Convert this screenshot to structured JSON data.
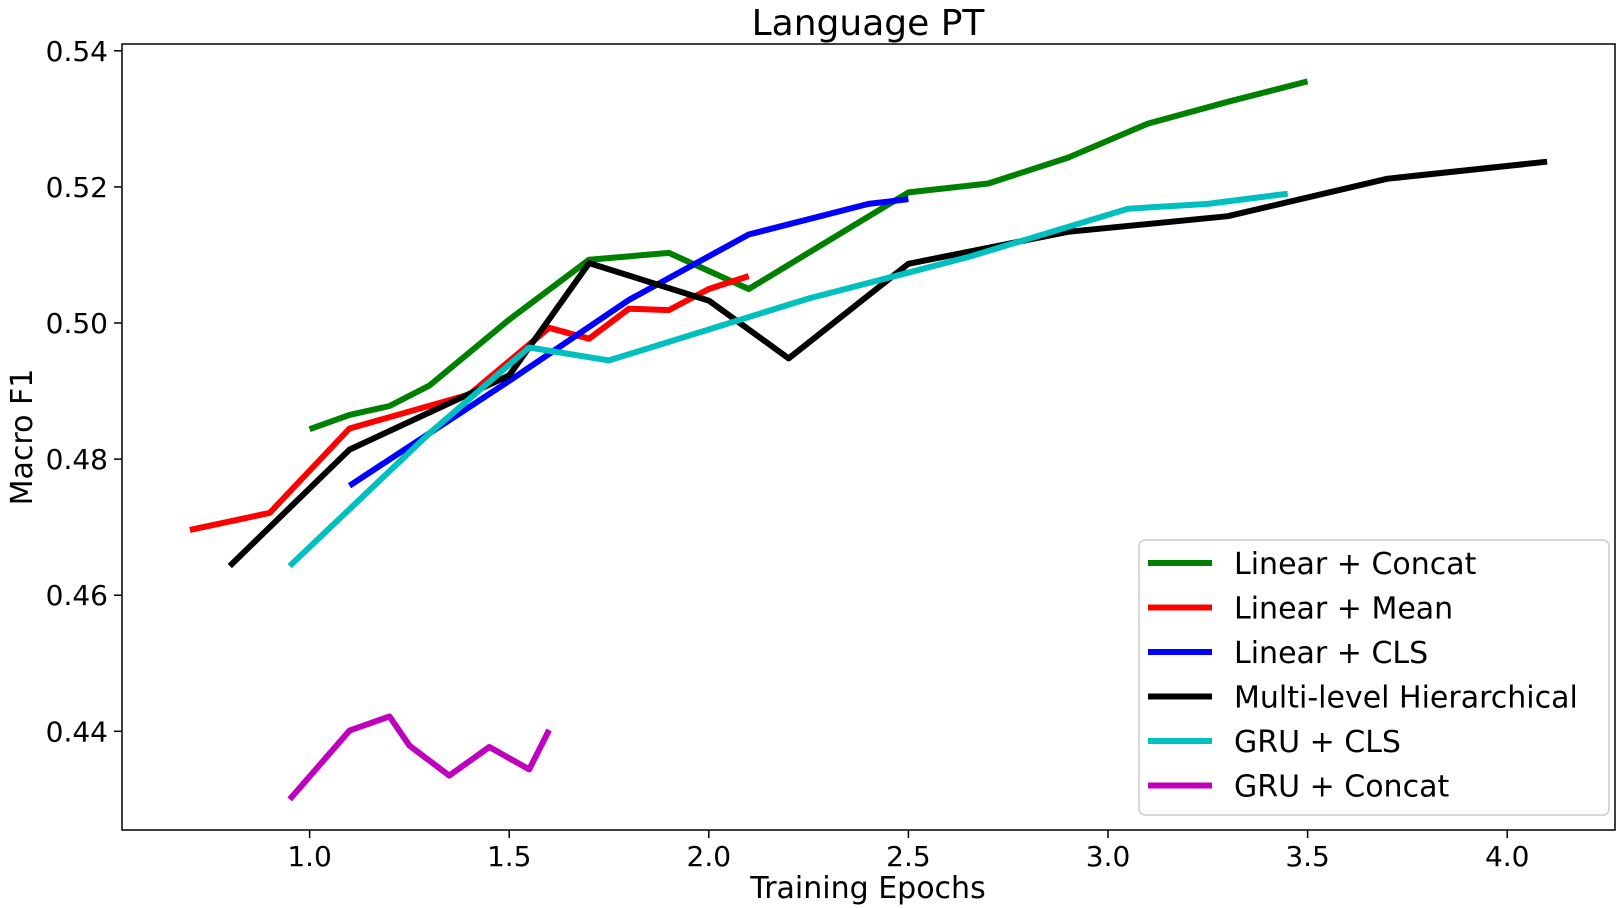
{
  "chart_data": {
    "type": "line",
    "title": "Language PT",
    "xlabel": "Training Epochs",
    "ylabel": "Macro F1",
    "xlim": [
      0.53,
      4.27
    ],
    "ylim": [
      0.4255,
      0.541
    ],
    "xticks": [
      1.0,
      1.5,
      2.0,
      2.5,
      3.0,
      3.5,
      4.0
    ],
    "xtick_labels": [
      "1.0",
      "1.5",
      "2.0",
      "2.5",
      "3.0",
      "3.5",
      "4.0"
    ],
    "yticks": [
      0.44,
      0.46,
      0.48,
      0.5,
      0.52,
      0.54
    ],
    "ytick_labels": [
      "0.44",
      "0.46",
      "0.48",
      "0.50",
      "0.52",
      "0.54"
    ],
    "grid": false,
    "legend_position": "bottom-right",
    "series": [
      {
        "name": "Linear + Concat",
        "color": "#008000",
        "x": [
          1.0,
          1.1,
          1.2,
          1.3,
          1.5,
          1.7,
          1.9,
          2.1,
          2.5,
          2.7,
          2.9,
          3.1,
          3.3,
          3.5
        ],
        "y": [
          0.4844,
          0.4865,
          0.4878,
          0.4908,
          0.5005,
          0.5093,
          0.5103,
          0.505,
          0.5192,
          0.5205,
          0.5243,
          0.5293,
          0.5325,
          0.5355
        ]
      },
      {
        "name": "Linear + Mean",
        "color": "#ff0000",
        "x": [
          0.7,
          0.9,
          1.1,
          1.4,
          1.6,
          1.7,
          1.8,
          1.9,
          2.0,
          2.1
        ],
        "y": [
          0.4696,
          0.4721,
          0.4845,
          0.4895,
          0.4993,
          0.4977,
          0.5021,
          0.5019,
          0.505,
          0.5069
        ]
      },
      {
        "name": "Linear + CLS",
        "color": "#0000ff",
        "x": [
          1.1,
          1.5,
          1.8,
          2.1,
          2.4,
          2.5
        ],
        "y": [
          0.4761,
          0.4915,
          0.5034,
          0.513,
          0.5175,
          0.5182
        ]
      },
      {
        "name": "Multi-level Hierarchical",
        "color": "#000000",
        "x": [
          0.8,
          1.1,
          1.5,
          1.7,
          2.0,
          2.2,
          2.5,
          2.9,
          3.3,
          3.7,
          4.1
        ],
        "y": [
          0.4643,
          0.4814,
          0.4923,
          0.5088,
          0.5033,
          0.4948,
          0.5087,
          0.5134,
          0.5157,
          0.5212,
          0.5237
        ]
      },
      {
        "name": "GRU + CLS",
        "color": "#00bfbf",
        "x": [
          0.95,
          1.3,
          1.55,
          1.75,
          2.25,
          2.65,
          3.05,
          3.25,
          3.45
        ],
        "y": [
          0.4643,
          0.4838,
          0.4964,
          0.4945,
          0.5036,
          0.5097,
          0.5168,
          0.5175,
          0.519
        ]
      },
      {
        "name": "GRU + Concat",
        "color": "#bf00bf",
        "x": [
          0.95,
          1.1,
          1.2,
          1.25,
          1.35,
          1.45,
          1.55,
          1.6
        ],
        "y": [
          0.43,
          0.4401,
          0.4422,
          0.4379,
          0.4335,
          0.4377,
          0.4344,
          0.4402
        ]
      }
    ]
  }
}
